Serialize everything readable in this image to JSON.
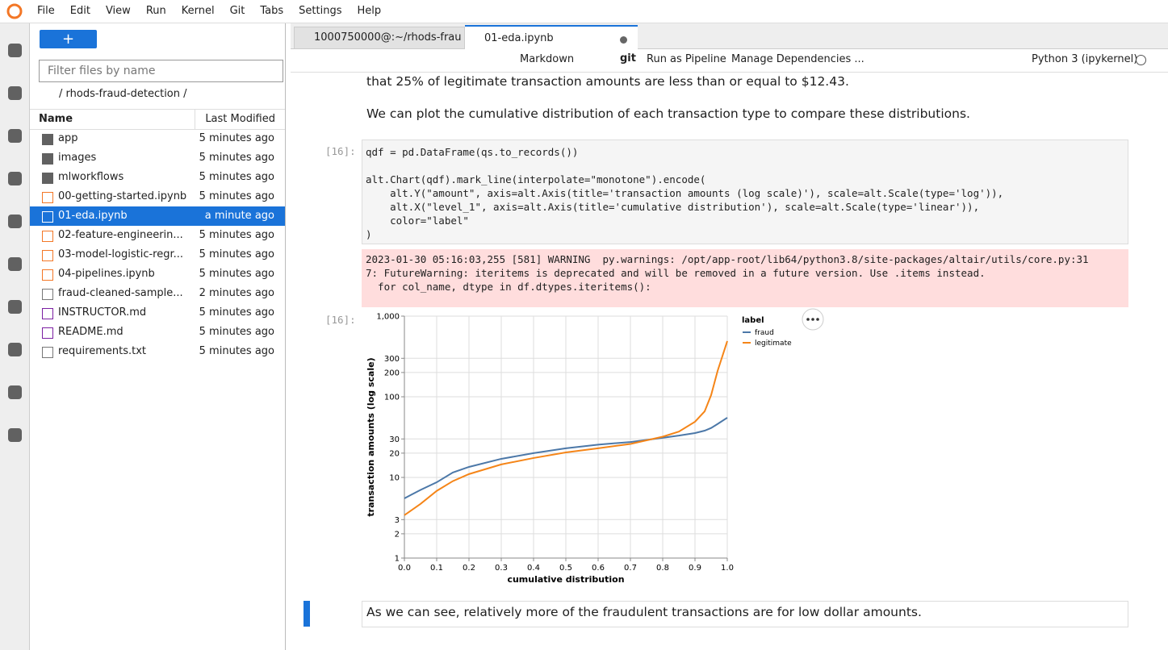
{
  "menu": [
    "File",
    "Edit",
    "View",
    "Run",
    "Kernel",
    "Git",
    "Tabs",
    "Settings",
    "Help"
  ],
  "file_browser": {
    "new_button": "+",
    "filter_placeholder": "Filter files by name",
    "breadcrumb": "/ rhods-fraud-detection /",
    "columns": [
      "Name",
      "Last Modified"
    ],
    "files": [
      {
        "name": "app",
        "modified": "5 minutes ago",
        "kind": "folder"
      },
      {
        "name": "images",
        "modified": "5 minutes ago",
        "kind": "folder"
      },
      {
        "name": "mlworkflows",
        "modified": "5 minutes ago",
        "kind": "folder"
      },
      {
        "name": "00-getting-started.ipynb",
        "modified": "5 minutes ago",
        "kind": "notebook"
      },
      {
        "name": "01-eda.ipynb",
        "modified": "a minute ago",
        "kind": "notebook",
        "selected": true
      },
      {
        "name": "02-feature-engineerin...",
        "modified": "5 minutes ago",
        "kind": "notebook"
      },
      {
        "name": "03-model-logistic-regr...",
        "modified": "5 minutes ago",
        "kind": "notebook"
      },
      {
        "name": "04-pipelines.ipynb",
        "modified": "5 minutes ago",
        "kind": "notebook"
      },
      {
        "name": "fraud-cleaned-sample...",
        "modified": "2 minutes ago",
        "kind": "file"
      },
      {
        "name": "INSTRUCTOR.md",
        "modified": "5 minutes ago",
        "kind": "markdown"
      },
      {
        "name": "README.md",
        "modified": "5 minutes ago",
        "kind": "markdown"
      },
      {
        "name": "requirements.txt",
        "modified": "5 minutes ago",
        "kind": "file"
      }
    ]
  },
  "tabs": [
    "1000750000@:~/rhods-frau",
    "01-eda.ipynb"
  ],
  "toolbar": {
    "cell_type": "Markdown",
    "git": "git",
    "run_pipeline": "Run as Pipeline",
    "dependencies": "Manage Dependencies ...",
    "kernel": "Python 3 (ipykernel)"
  },
  "notebook": {
    "markdown_top": [
      "that 25% of legitimate transaction amounts are less than or equal to $12.43.",
      "We can plot the cumulative distribution of each transaction type to compare these distributions."
    ],
    "input_prompt": "[16]:",
    "code_first": "qdf = pd.DataFrame(qs.to_records())",
    "code": [
      "alt.Chart(qdf).mark_line(interpolate=\"monotone\").encode(",
      "    alt.Y(\"amount\", axis=alt.Axis(title='transaction amounts (log scale)'), scale=alt.Scale(type='log')),",
      "    alt.X(\"level_1\", axis=alt.Axis(title='cumulative distribution'), scale=alt.Scale(type='linear')),",
      "    color=\"label\"",
      ")"
    ],
    "stderr": [
      "2023-01-30 05:16:03,255 [581] WARNING  py.warnings: /opt/app-root/lib64/python3.8/site-packages/altair/utils/core.py:31",
      "7: FutureWarning: iteritems is deprecated and will be removed in a future version. Use .items instead.",
      "  for col_name, dtype in df.dtypes.iteritems():"
    ],
    "output_prompt": "[16]:",
    "chart": {
      "type": "line",
      "x_label": "cumulative distribution",
      "y_label": "transaction amounts (log scale)",
      "legend_title": "label",
      "x": [
        0,
        0.05,
        0.1,
        0.15,
        0.2,
        0.3,
        0.4,
        0.5,
        0.6,
        0.7,
        0.8,
        0.85,
        0.9,
        0.93,
        0.95,
        0.97,
        1.0
      ],
      "series": [
        {
          "name": "fraud",
          "color": "#4c78a8",
          "values": [
            5.5,
            7,
            8.7,
            11.5,
            13.5,
            17,
            20,
            23,
            25.5,
            27.5,
            31,
            33,
            35.5,
            38,
            41,
            46,
            55
          ]
        },
        {
          "name": "legitimate",
          "color": "#f58518",
          "values": [
            3.4,
            4.7,
            6.8,
            9,
            11,
            14.5,
            17.4,
            20.4,
            23,
            26,
            32,
            37,
            49,
            66,
            105,
            209,
            490
          ]
        }
      ],
      "xlim": [
        0,
        1
      ],
      "xticks": [
        {
          "value": 0,
          "label": "0.0"
        },
        0.1,
        0.2,
        0.3,
        0.4,
        0.5,
        0.6,
        0.7,
        0.8,
        0.9,
        {
          "value": 1,
          "label": "1.0"
        }
      ],
      "ylim": [
        1,
        1000
      ],
      "yscale": "log",
      "yticks": [
        1,
        2,
        3,
        10,
        20,
        30,
        100,
        200,
        300,
        {
          "value": 1000,
          "label": "1,000"
        }
      ],
      "grid": true,
      "legend": "right"
    },
    "markdown_bottom": "As we can see, relatively more of the fraudulent transactions are for low dollar amounts."
  }
}
